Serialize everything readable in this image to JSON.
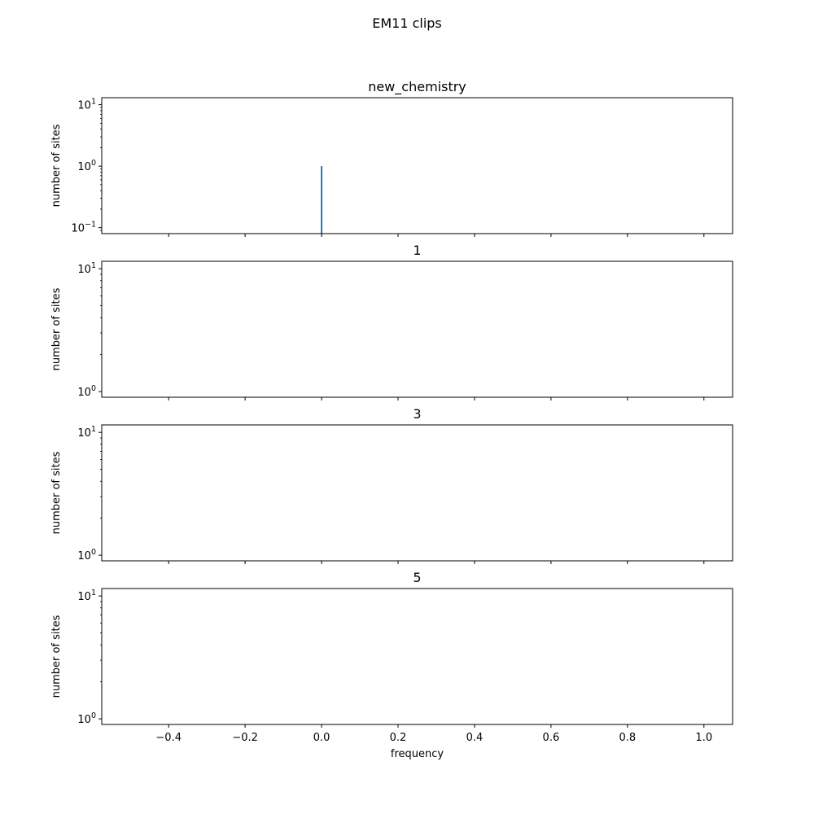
{
  "figure_title": "EM11 clips",
  "xlabel": "frequency",
  "chart_data": [
    {
      "type": "bar",
      "title": "new_chemistry",
      "ylabel": "number of sites",
      "yscale": "log",
      "ylim": [
        0.08,
        13
      ],
      "xlim": [
        -0.575,
        1.075
      ],
      "y_ticks": [
        {
          "value": 0.1,
          "base": "10",
          "exp": "−1"
        },
        {
          "value": 1,
          "base": "10",
          "exp": "0"
        },
        {
          "value": 10,
          "base": "10",
          "exp": "1"
        }
      ],
      "bars": [
        {
          "x": 0.0,
          "value": 1
        }
      ],
      "bar_color": "#1f77b4"
    },
    {
      "type": "bar",
      "title": "1",
      "ylabel": "number of sites",
      "yscale": "log",
      "ylim": [
        0.9,
        11.5
      ],
      "xlim": [
        -0.575,
        1.075
      ],
      "y_ticks": [
        {
          "value": 1,
          "base": "10",
          "exp": "0"
        },
        {
          "value": 10,
          "base": "10",
          "exp": "1"
        }
      ],
      "bars": []
    },
    {
      "type": "bar",
      "title": "3",
      "ylabel": "number of sites",
      "yscale": "log",
      "ylim": [
        0.9,
        11.5
      ],
      "xlim": [
        -0.575,
        1.075
      ],
      "y_ticks": [
        {
          "value": 1,
          "base": "10",
          "exp": "0"
        },
        {
          "value": 10,
          "base": "10",
          "exp": "1"
        }
      ],
      "bars": []
    },
    {
      "type": "bar",
      "title": "5",
      "ylabel": "number of sites",
      "yscale": "log",
      "ylim": [
        0.9,
        11.5
      ],
      "xlim": [
        -0.575,
        1.075
      ],
      "y_ticks": [
        {
          "value": 1,
          "base": "10",
          "exp": "0"
        },
        {
          "value": 10,
          "base": "10",
          "exp": "1"
        }
      ],
      "bars": []
    }
  ],
  "x_ticks": [
    {
      "value": -0.4,
      "label": "−0.4"
    },
    {
      "value": -0.2,
      "label": "−0.2"
    },
    {
      "value": 0.0,
      "label": "0.0"
    },
    {
      "value": 0.2,
      "label": "0.2"
    },
    {
      "value": 0.4,
      "label": "0.4"
    },
    {
      "value": 0.6,
      "label": "0.6"
    },
    {
      "value": 0.8,
      "label": "0.8"
    },
    {
      "value": 1.0,
      "label": "1.0"
    }
  ]
}
